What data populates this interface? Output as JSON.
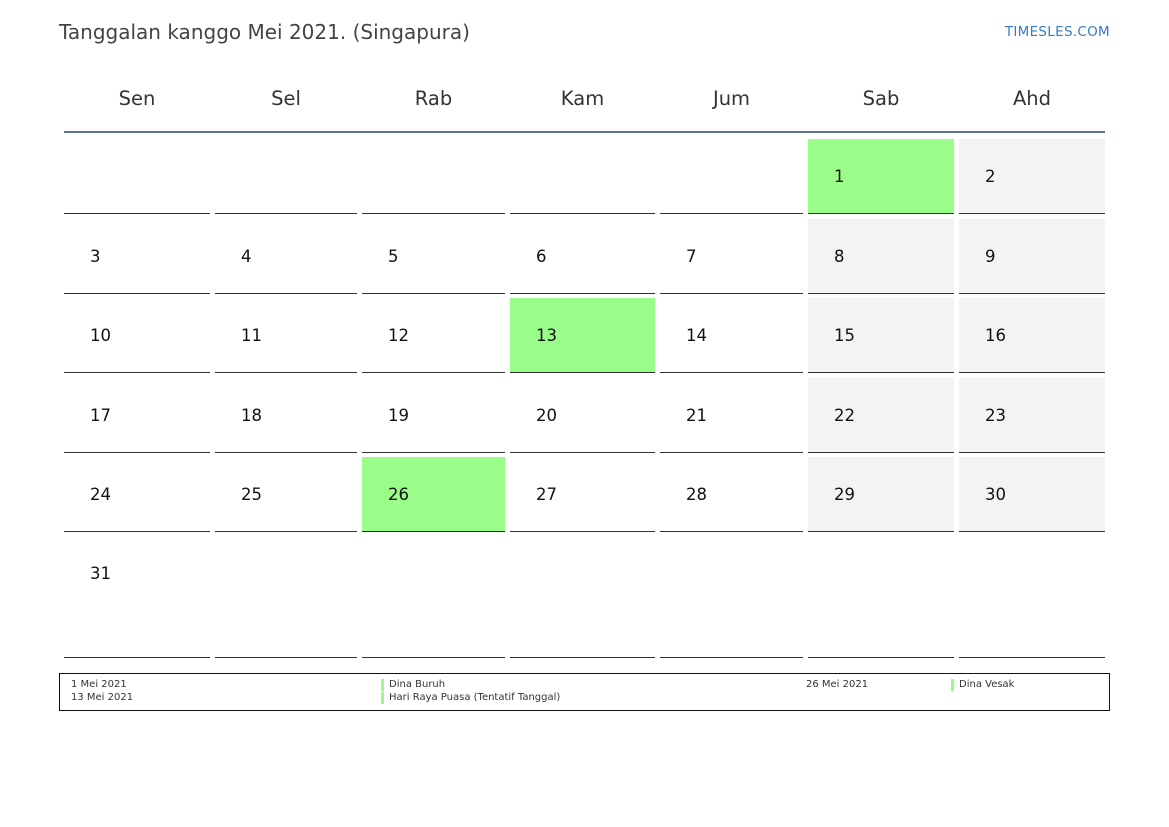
{
  "title": "Tanggalan kanggo Mei 2021. (Singapura)",
  "brand": "TIMESLES.COM",
  "colors": {
    "holiday": "#9afd89",
    "weekend": "#f3f3f3",
    "header_rule": "#5a7494",
    "brand": "#3a7bbf"
  },
  "weekdays": [
    "Sen",
    "Sel",
    "Rab",
    "Kam",
    "Jum",
    "Sab",
    "Ahd"
  ],
  "weeks": [
    [
      "",
      "",
      "",
      "",
      "",
      "1",
      "2"
    ],
    [
      "3",
      "4",
      "5",
      "6",
      "7",
      "8",
      "9"
    ],
    [
      "10",
      "11",
      "12",
      "13",
      "14",
      "15",
      "16"
    ],
    [
      "17",
      "18",
      "19",
      "20",
      "21",
      "22",
      "23"
    ],
    [
      "24",
      "25",
      "26",
      "27",
      "28",
      "29",
      "30"
    ],
    [
      "31",
      "",
      "",
      "",
      "",
      "",
      ""
    ]
  ],
  "holiday_days": [
    "1",
    "13",
    "26"
  ],
  "legend": {
    "holidays": [
      {
        "date": "1 Mei 2021",
        "name": "Dina Buruh"
      },
      {
        "date": "13 Mei 2021",
        "name": "Hari Raya Puasa (Tentatif Tanggal)"
      },
      {
        "date": "26 Mei 2021",
        "name": "Dina Vesak"
      }
    ]
  }
}
